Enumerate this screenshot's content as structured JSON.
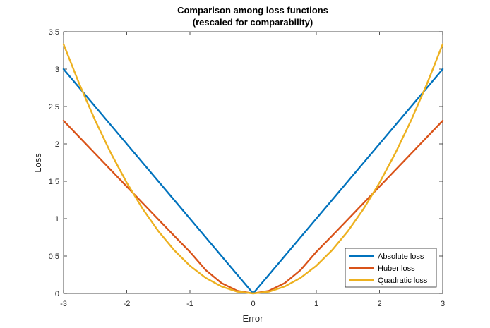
{
  "chart_data": {
    "type": "line",
    "title": "Comparison among loss functions",
    "subtitle": "(rescaled for comparability)",
    "xlabel": "Error",
    "ylabel": "Loss",
    "xlim": [
      -3,
      3
    ],
    "ylim": [
      0,
      3.5
    ],
    "xticks": [
      -3,
      -2,
      -1,
      0,
      1,
      2,
      3
    ],
    "yticks": [
      0,
      0.5,
      1,
      1.5,
      2,
      2.5,
      3,
      3.5
    ],
    "xtick_labels": [
      "-3",
      "-2",
      "-1",
      "0",
      "1",
      "2",
      "3"
    ],
    "ytick_labels": [
      "0",
      "0.5",
      "1",
      "1.5",
      "2",
      "2.5",
      "3",
      "3.5"
    ],
    "grid": false,
    "legend_position": "bottom-right",
    "series": [
      {
        "name": "Absolute loss",
        "color": "#0072BD",
        "x": [
          -3,
          -2,
          -1,
          0,
          1,
          2,
          3
        ],
        "y": [
          3,
          2,
          1,
          0,
          1,
          2,
          3
        ]
      },
      {
        "name": "Huber loss",
        "color": "#D95319",
        "x": [
          -3,
          -2.5,
          -2,
          -1.5,
          -1.25,
          -1,
          -0.75,
          -0.5,
          -0.25,
          0,
          0.25,
          0.5,
          0.75,
          1,
          1.25,
          1.5,
          2,
          2.5,
          3
        ],
        "y": [
          2.31,
          1.87,
          1.43,
          0.99,
          0.771,
          0.556,
          0.3125,
          0.139,
          0.035,
          0,
          0.035,
          0.139,
          0.3125,
          0.556,
          0.771,
          0.99,
          1.43,
          1.87,
          2.31
        ]
      },
      {
        "name": "Quadratic loss",
        "color": "#EDB120",
        "x": [
          -3,
          -2.75,
          -2.5,
          -2.25,
          -2,
          -1.75,
          -1.5,
          -1.25,
          -1,
          -0.75,
          -0.5,
          -0.25,
          0,
          0.25,
          0.5,
          0.75,
          1,
          1.25,
          1.5,
          1.75,
          2,
          2.25,
          2.5,
          2.75,
          3
        ],
        "y": [
          3.333,
          2.801,
          2.315,
          1.875,
          1.481,
          1.134,
          0.833,
          0.579,
          0.37,
          0.208,
          0.093,
          0.023,
          0,
          0.023,
          0.093,
          0.208,
          0.37,
          0.579,
          0.833,
          1.134,
          1.481,
          1.875,
          2.315,
          2.801,
          3.333
        ]
      }
    ]
  }
}
